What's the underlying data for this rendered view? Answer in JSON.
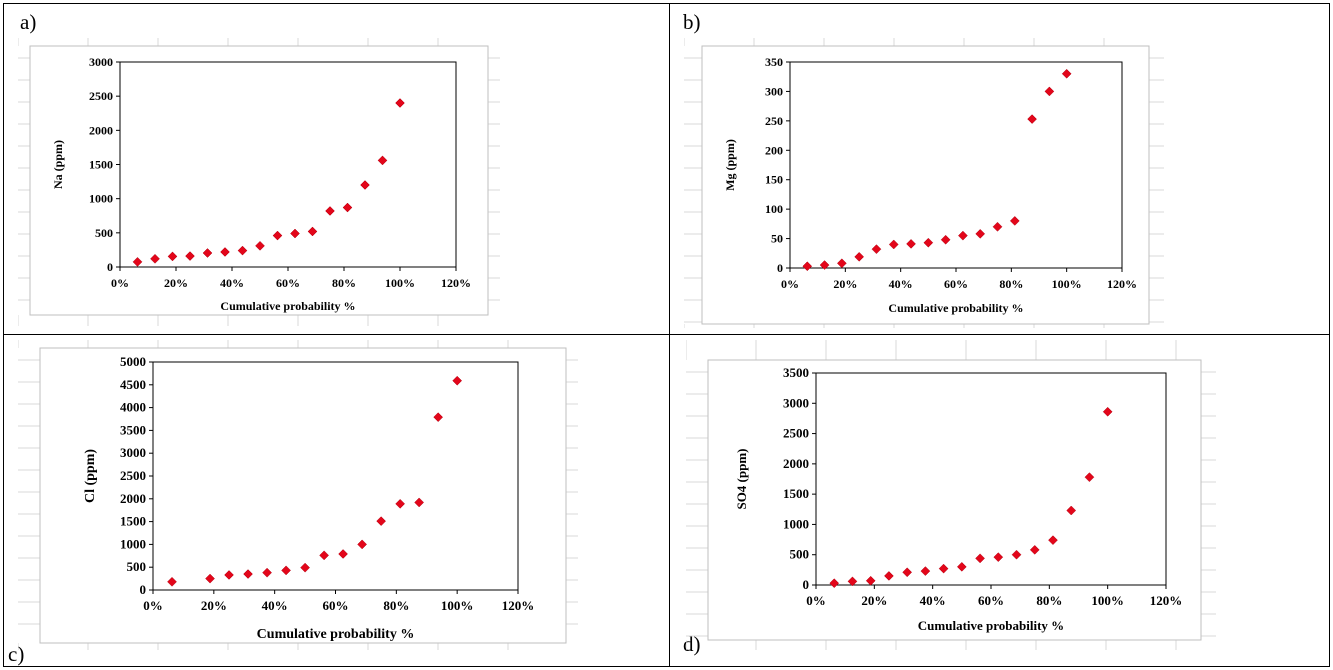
{
  "panels": [
    {
      "letter": "a)"
    },
    {
      "letter": "b)"
    },
    {
      "letter": "c)"
    },
    {
      "letter": "d)"
    }
  ],
  "colors": {
    "marker": "#e3061a",
    "axis": "#000000",
    "sheet_grid": "#d9d9d9",
    "frame": "#bfbfbf"
  },
  "chart_data": [
    {
      "type": "scatter",
      "title": "",
      "xlabel": "Cumulative probability %",
      "ylabel": "Na (ppm)",
      "xlim": [
        0,
        120
      ],
      "ylim": [
        0,
        3000
      ],
      "xticks": [
        "0%",
        "20%",
        "40%",
        "60%",
        "80%",
        "100%",
        "120%"
      ],
      "yticks": [
        "0",
        "500",
        "1000",
        "1500",
        "2000",
        "2500",
        "3000"
      ],
      "x": [
        6.25,
        12.5,
        18.75,
        25,
        31.25,
        37.5,
        43.75,
        50,
        56.25,
        62.5,
        68.75,
        75,
        81.25,
        87.5,
        93.75,
        100
      ],
      "y": [
        75,
        120,
        155,
        160,
        205,
        220,
        240,
        310,
        460,
        490,
        520,
        820,
        870,
        1200,
        1560,
        2400
      ],
      "marker": "diamond",
      "grid": false
    },
    {
      "type": "scatter",
      "title": "",
      "xlabel": "Cumulative probability %",
      "ylabel": "Mg (ppm)",
      "xlim": [
        0,
        120
      ],
      "ylim": [
        0,
        350
      ],
      "xticks": [
        "0%",
        "20%",
        "40%",
        "60%",
        "80%",
        "100%",
        "120%"
      ],
      "yticks": [
        "0",
        "50",
        "100",
        "150",
        "200",
        "250",
        "300",
        "350"
      ],
      "x": [
        6.25,
        12.5,
        18.75,
        25,
        31.25,
        37.5,
        43.75,
        50,
        56.25,
        62.5,
        68.75,
        75,
        81.25,
        87.5,
        93.75,
        100
      ],
      "y": [
        3,
        5,
        8,
        19,
        32,
        40,
        41,
        43,
        48,
        55,
        58,
        70,
        80,
        253,
        300,
        330
      ],
      "marker": "diamond",
      "grid": false
    },
    {
      "type": "scatter",
      "title": "",
      "xlabel": "Cumulative probability %",
      "ylabel": "Cl (ppm)",
      "xlim": [
        0,
        120
      ],
      "ylim": [
        0,
        5000
      ],
      "xticks": [
        "0%",
        "20%",
        "40%",
        "60%",
        "80%",
        "100%",
        "120%"
      ],
      "yticks": [
        "0",
        "500",
        "1000",
        "1500",
        "2000",
        "2500",
        "3000",
        "3500",
        "4000",
        "4500",
        "5000"
      ],
      "x": [
        6.25,
        18.75,
        25,
        31.25,
        37.5,
        43.75,
        50,
        56.25,
        62.5,
        68.75,
        75,
        81.25,
        87.5,
        93.75,
        100
      ],
      "y": [
        180,
        250,
        330,
        350,
        380,
        430,
        490,
        760,
        790,
        1000,
        1510,
        1890,
        1920,
        3790,
        4590
      ],
      "marker": "diamond",
      "grid": false
    },
    {
      "type": "scatter",
      "title": "",
      "xlabel": "Cumulative probability %",
      "ylabel": "SO4 (ppm)",
      "xlim": [
        0,
        120
      ],
      "ylim": [
        0,
        3500
      ],
      "xticks": [
        "0%",
        "20%",
        "40%",
        "60%",
        "80%",
        "100%",
        "120%"
      ],
      "yticks": [
        "0",
        "500",
        "1000",
        "1500",
        "2000",
        "2500",
        "3000",
        "3500"
      ],
      "x": [
        6.25,
        12.5,
        18.75,
        25,
        31.25,
        37.5,
        43.75,
        50,
        56.25,
        62.5,
        68.75,
        75,
        81.25,
        87.5,
        93.75,
        100
      ],
      "y": [
        30,
        60,
        70,
        150,
        210,
        230,
        270,
        300,
        440,
        460,
        500,
        580,
        740,
        1230,
        1780,
        2860
      ],
      "marker": "diamond",
      "grid": false
    }
  ]
}
